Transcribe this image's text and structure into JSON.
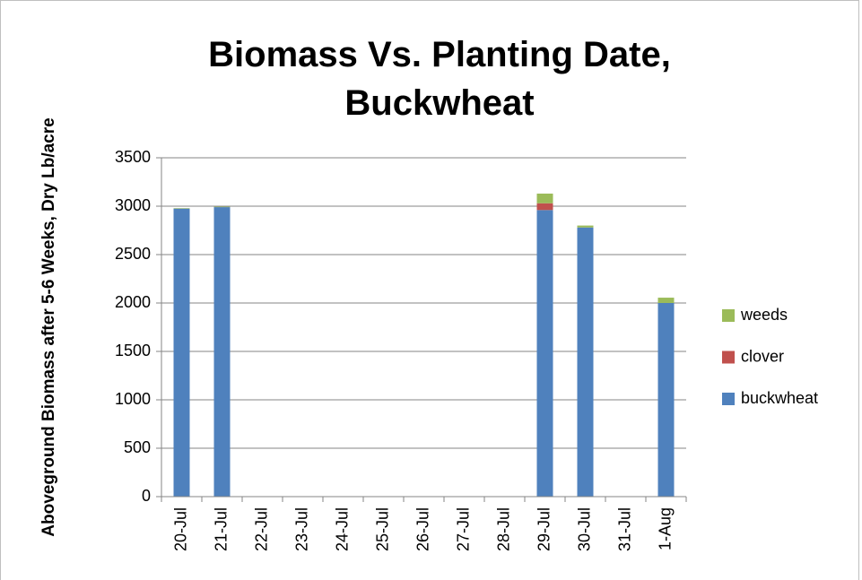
{
  "chart_data": {
    "type": "stacked_bar",
    "title": "Biomass Vs. Planting Date, Buckwheat",
    "y_label": "Aboveground Biomass after 5-6 Weeks, Dry Lb/acre",
    "categories": [
      "20-Jul",
      "21-Jul",
      "22-Jul",
      "23-Jul",
      "24-Jul",
      "25-Jul",
      "26-Jul",
      "27-Jul",
      "28-Jul",
      "29-Jul",
      "30-Jul",
      "31-Jul",
      "1-Aug"
    ],
    "series": [
      {
        "name": "buckwheat",
        "color": "#4f81bd",
        "values": [
          2975,
          2990,
          null,
          null,
          null,
          null,
          null,
          null,
          null,
          2960,
          2780,
          null,
          2000
        ]
      },
      {
        "name": "clover",
        "color": "#c0504d",
        "values": [
          null,
          null,
          null,
          null,
          null,
          null,
          null,
          null,
          null,
          70,
          null,
          null,
          null
        ]
      },
      {
        "name": "weeds",
        "color": "#9bbb59",
        "values": [
          5,
          5,
          null,
          null,
          null,
          null,
          null,
          null,
          null,
          100,
          20,
          null,
          55
        ]
      }
    ],
    "ylim": [
      0,
      3500
    ],
    "yticks": [
      0,
      500,
      1000,
      1500,
      2000,
      2500,
      3000,
      3500
    ],
    "grid": true,
    "legend": "right"
  }
}
